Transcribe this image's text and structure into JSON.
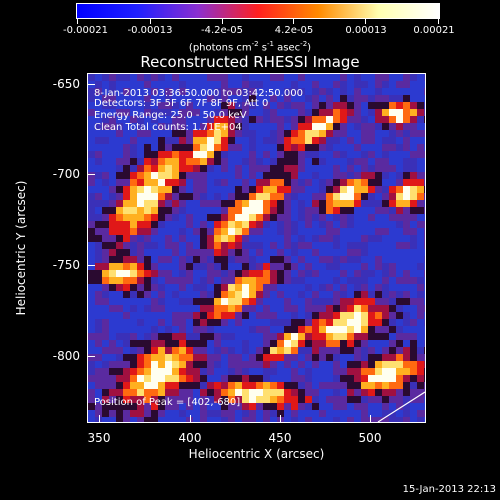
{
  "colorbar": {
    "tick_labels": [
      "-0.00021",
      "-0.00013",
      "-4.2e-05",
      "4.2e-05",
      "0.00013",
      "0.00021"
    ],
    "units_prefix": "(photons cm",
    "units_exp1": "-2",
    "units_mid1": " s",
    "units_exp2": "-1",
    "units_mid2": " asec",
    "units_exp3": "-2",
    "units_suffix": ")",
    "colors": [
      "#0000ff",
      "#2020ff",
      "#8a2fd0",
      "#ff2020",
      "#ff8a00",
      "#ffffb0",
      "#ffffff"
    ]
  },
  "title": "Reconstructed RHESSI Image",
  "info": {
    "line1": "8-Jan-2013 03:36:50.000 to 03:42:50.000",
    "line2": "Detectors: 3F 5F 6F 7F 8F 9F, Att 0",
    "line3": "Energy Range: 25.0 - 50.0 keV",
    "line4": "Clean    Total counts: 1.71E+04",
    "peak": "Position of Peak = [402,-680]"
  },
  "axes": {
    "xlabel": "Heliocentric X (arcsec)",
    "ylabel": "Heliocentric Y (arcsec)",
    "xticks": [
      "350",
      "400",
      "450",
      "500"
    ],
    "yticks": [
      "-650",
      "-700",
      "-750",
      "-800"
    ]
  },
  "timestamp": "15-Jan-2013 22:13"
}
